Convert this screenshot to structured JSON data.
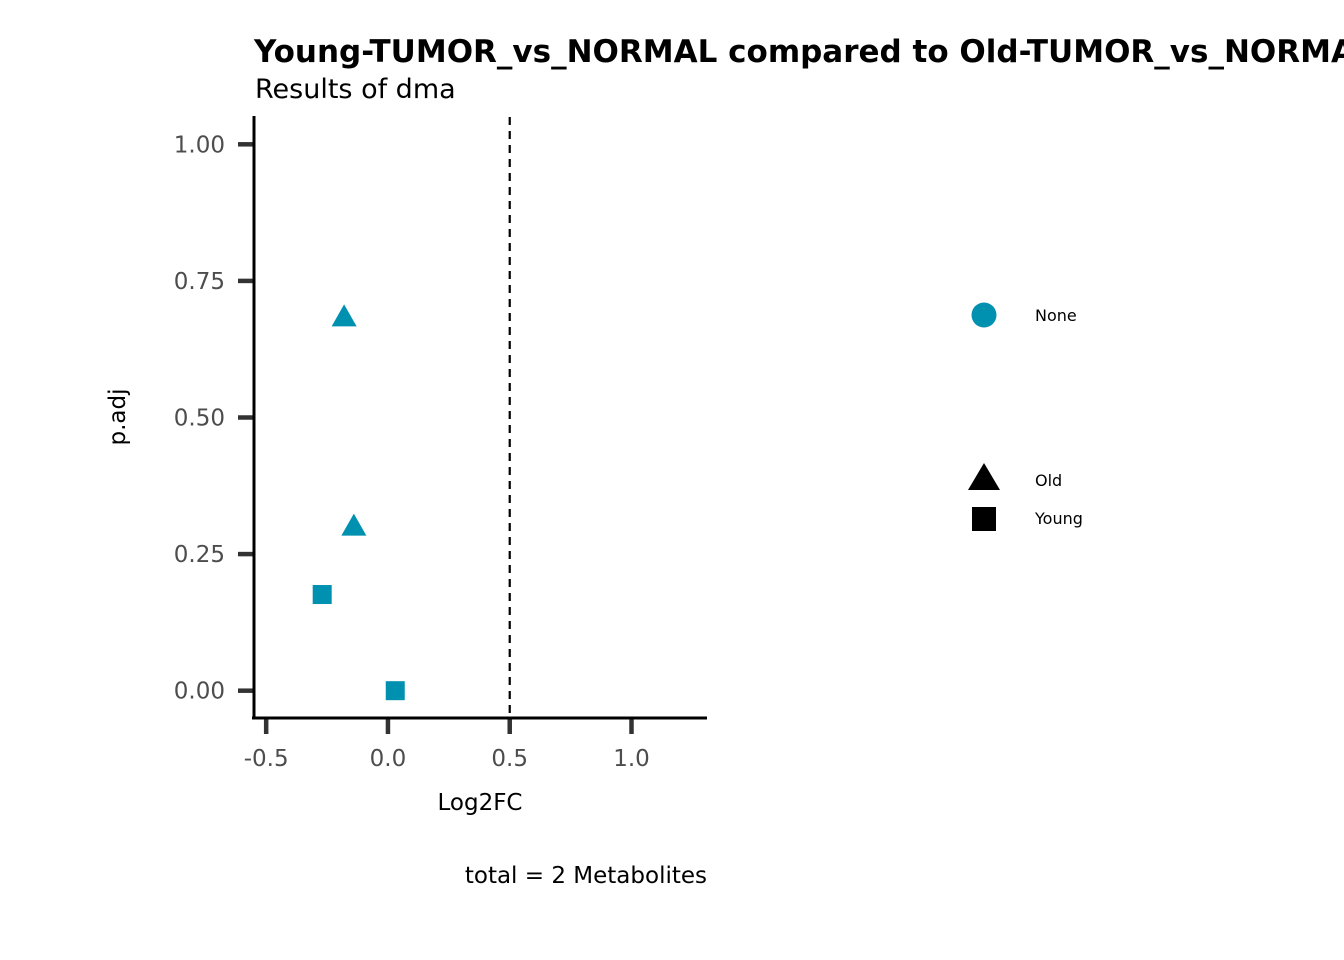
{
  "chart_data": {
    "type": "scatter",
    "title": "Young-TUMOR_vs_NORMAL compared to Old-TUMOR_vs_NORMAL",
    "subtitle": "Results of dma",
    "xlabel": "Log2FC",
    "ylabel": "p.adj",
    "caption": "total = 2 Metabolites",
    "xlim": [
      -0.55,
      1.31
    ],
    "ylim": [
      -0.05,
      1.05
    ],
    "x_ticks": [
      -0.5,
      0.0,
      0.5,
      1.0
    ],
    "x_tick_labels": [
      "-0.5",
      "0.0",
      "0.5",
      "1.0"
    ],
    "y_ticks": [
      0.0,
      0.25,
      0.5,
      0.75,
      1.0
    ],
    "y_tick_labels": [
      "0.00",
      "0.25",
      "0.50",
      "0.75",
      "1.00"
    ],
    "vline": 0.5,
    "point_color": "#0091b0",
    "grid": false,
    "legend_position": "right",
    "legend": {
      "color_entries": [
        {
          "label": "None",
          "color": "#0091b0",
          "shape": "circle"
        }
      ],
      "shape_entries": [
        {
          "label": "Old",
          "shape": "triangle"
        },
        {
          "label": "Young",
          "shape": "square"
        }
      ]
    },
    "series": [
      {
        "shape": "triangle",
        "points": [
          {
            "x": -0.18,
            "y": 0.685
          },
          {
            "x": -0.14,
            "y": 0.302
          }
        ]
      },
      {
        "shape": "square",
        "points": [
          {
            "x": -0.27,
            "y": 0.176
          },
          {
            "x": 0.03,
            "y": 0.0
          }
        ]
      }
    ]
  }
}
